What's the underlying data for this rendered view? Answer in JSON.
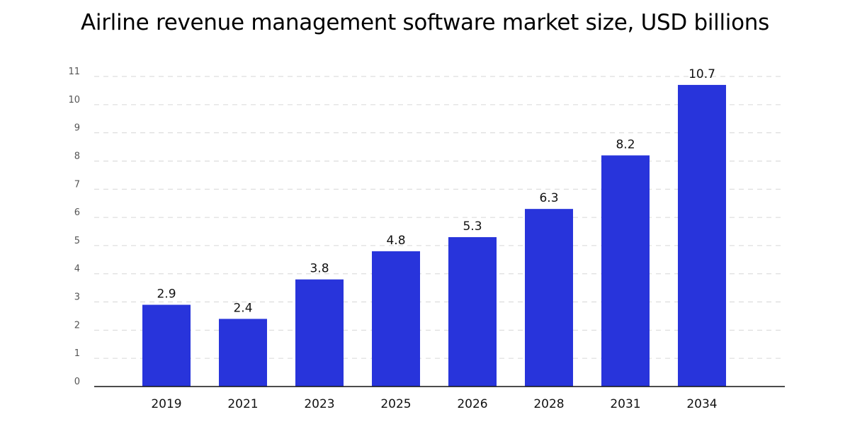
{
  "chart_data": {
    "type": "bar",
    "title": "Airline revenue management software market size, USD billions",
    "xlabel": "",
    "ylabel": "",
    "categories": [
      "2019",
      "2021",
      "2023",
      "2025",
      "2026",
      "2028",
      "2031",
      "2034"
    ],
    "values": [
      2.9,
      2.4,
      3.8,
      4.8,
      5.3,
      6.3,
      8.2,
      10.7
    ],
    "data_labels": [
      "2.9",
      "2.4",
      "3.8",
      "4.8",
      "5.3",
      "6.3",
      "8.2",
      "10.7"
    ],
    "ylim": [
      0,
      11
    ],
    "yticks": [
      0,
      1,
      2,
      3,
      4,
      5,
      6,
      7,
      8,
      9,
      10,
      11
    ],
    "grid": true,
    "legend": "none",
    "bar_color": "#2834db"
  }
}
